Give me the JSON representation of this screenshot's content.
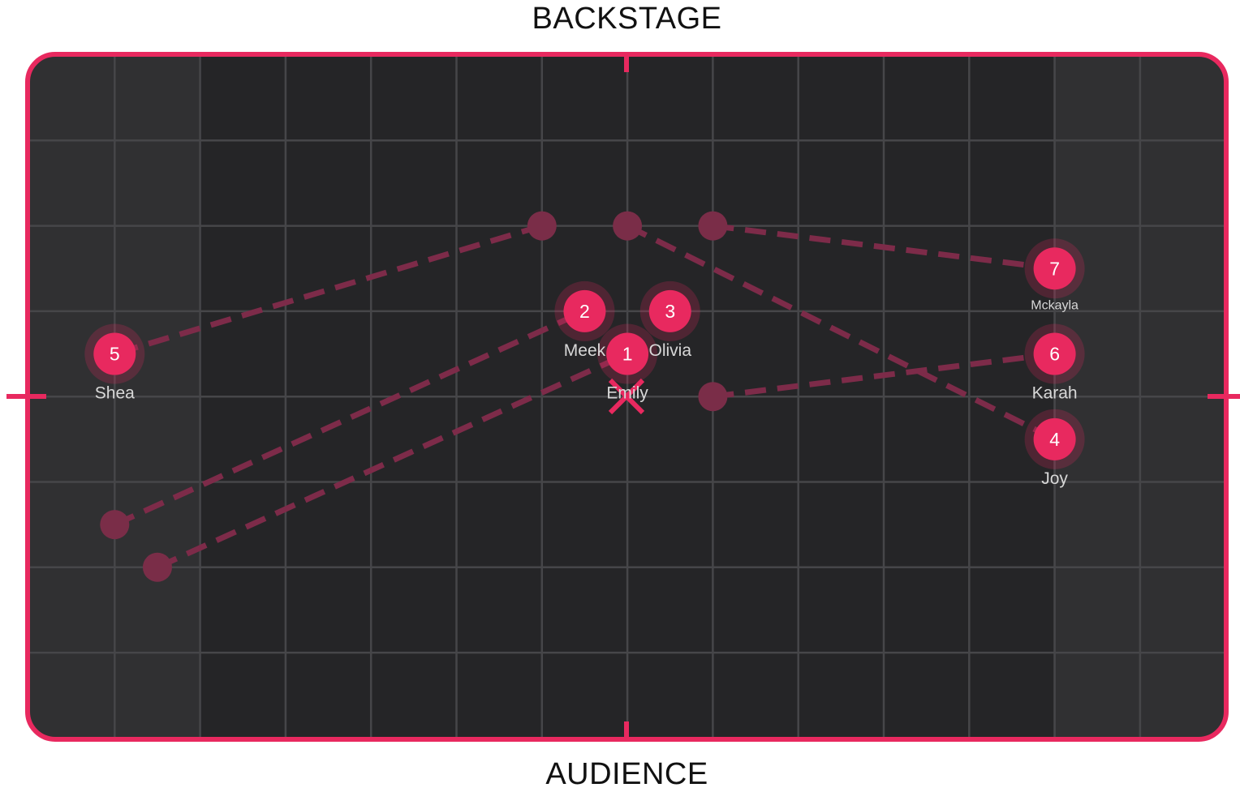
{
  "labels": {
    "top": "BACKSTAGE",
    "bottom": "AUDIENCE"
  },
  "colors": {
    "accent": "#e8295f",
    "stage_bg": "#252527",
    "wing_bg": "#303032",
    "grid": "#464649",
    "ghost": "#7a2d48",
    "path": "#7d2b49"
  },
  "dancers": [
    {
      "number": "1",
      "name": "Emily",
      "col": 7,
      "row": 3.5,
      "prev_col": 1.5,
      "prev_row": 6,
      "name_small": false
    },
    {
      "number": "2",
      "name": "Meek",
      "col": 6.5,
      "row": 3,
      "prev_col": 1,
      "prev_row": 5.5,
      "name_small": false
    },
    {
      "number": "3",
      "name": "Olivia",
      "col": 7.5,
      "row": 3,
      "prev_col": null,
      "prev_row": null,
      "name_small": false
    },
    {
      "number": "4",
      "name": "Joy",
      "col": 12,
      "row": 4.5,
      "prev_col": 7,
      "prev_row": 2,
      "name_small": false
    },
    {
      "number": "5",
      "name": "Shea",
      "col": 1,
      "row": 3.5,
      "prev_col": 6,
      "prev_row": 2,
      "name_small": false
    },
    {
      "number": "6",
      "name": "Karah",
      "col": 12,
      "row": 3.5,
      "prev_col": 8,
      "prev_row": 4,
      "name_small": false
    },
    {
      "number": "7",
      "name": "Mckayla",
      "col": 12,
      "row": 2.5,
      "prev_col": 8,
      "prev_row": 2,
      "name_small": true
    }
  ]
}
